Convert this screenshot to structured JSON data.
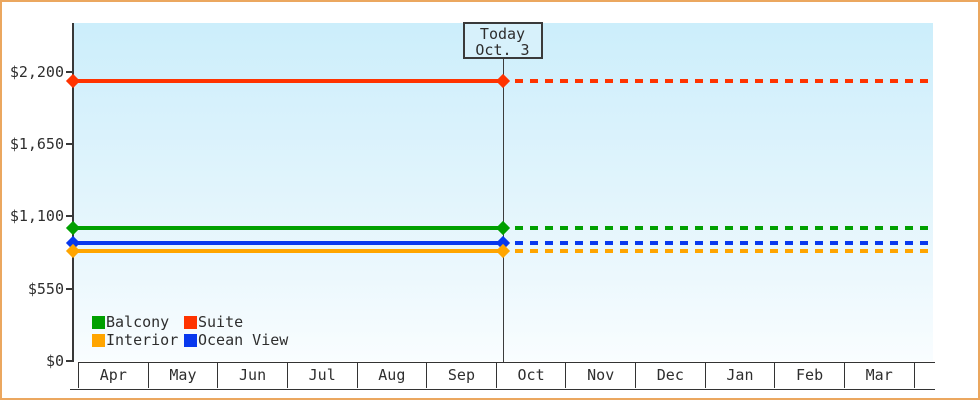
{
  "chart_data": {
    "type": "line",
    "title": "",
    "x_categories": [
      "Apr",
      "May",
      "Jun",
      "Jul",
      "Aug",
      "Sep",
      "Oct",
      "Nov",
      "Dec",
      "Jan",
      "Feb",
      "Mar"
    ],
    "y_ticks": [
      {
        "label": "$0",
        "value": 0
      },
      {
        "label": "$550",
        "value": 550
      },
      {
        "label": "$1,100",
        "value": 1100
      },
      {
        "label": "$1,650",
        "value": 1650
      },
      {
        "label": "$2,200",
        "value": 2200
      }
    ],
    "ylim": [
      0,
      2570
    ],
    "grid": false,
    "today_marker": {
      "line1": "Today",
      "line2": "Oct. 3",
      "position_category": "Oct",
      "day": 3
    },
    "series": [
      {
        "name": "Suite",
        "color": "#ff3300",
        "value": 2130
      },
      {
        "name": "Balcony",
        "color": "#00a000",
        "value": 1010
      },
      {
        "name": "Ocean View",
        "color": "#0838ee",
        "value": 895
      },
      {
        "name": "Interior",
        "color": "#ffa500",
        "value": 840
      }
    ],
    "line_style": "solid before today, dashed projection after today, diamond markers at axis and today",
    "legend_position": "bottom-left",
    "legend_rows": [
      [
        "Balcony",
        "Suite"
      ],
      [
        "Interior",
        "Ocean View"
      ]
    ]
  },
  "colors": {
    "frame_border": "#eba75f",
    "plot_top": "#cceefb",
    "plot_bottom": "#f9fdff",
    "axis": "#383838",
    "text": "#2e2e2e",
    "today_box_bg": "#d7f1fb"
  }
}
